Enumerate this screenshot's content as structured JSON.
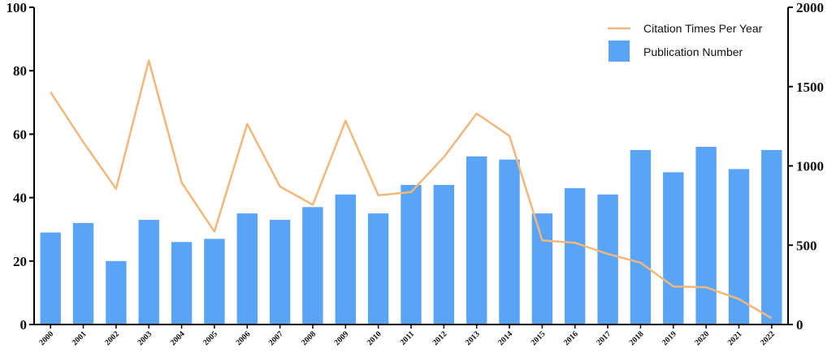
{
  "chart_data": {
    "type": "bar+line",
    "categories": [
      "2000",
      "2001",
      "2002",
      "2003",
      "2004",
      "2005",
      "2006",
      "2007",
      "2008",
      "2009",
      "2010",
      "2011",
      "2012",
      "2013",
      "2014",
      "2015",
      "2016",
      "2017",
      "2018",
      "2019",
      "2020",
      "2021",
      "2022"
    ],
    "series": [
      {
        "name": "Publication Number",
        "type": "bar",
        "axis": "left",
        "color": "#59a4f7",
        "values": [
          29,
          32,
          20,
          33,
          26,
          27,
          35,
          33,
          37,
          41,
          35,
          44,
          44,
          53,
          52,
          35,
          43,
          41,
          55,
          48,
          56,
          49,
          55
        ]
      },
      {
        "name": "Citation Times Per Year",
        "type": "line",
        "axis": "right",
        "color": "#f2b77a",
        "values": [
          1465,
          1150,
          855,
          1665,
          895,
          585,
          1265,
          870,
          755,
          1285,
          815,
          835,
          1055,
          1330,
          1190,
          530,
          515,
          445,
          390,
          240,
          235,
          160,
          40
        ]
      }
    ],
    "ylim_left": [
      0,
      100
    ],
    "ylim_right": [
      0,
      2000
    ],
    "yticks_left": [
      "0",
      "20",
      "40",
      "60",
      "80",
      "100"
    ],
    "yticks_right": [
      "0",
      "500",
      "1000",
      "1500",
      "2000"
    ],
    "legend": {
      "position": "top-right",
      "entries": [
        "Citation Times Per Year",
        "Publication Number"
      ]
    },
    "grid": false
  }
}
